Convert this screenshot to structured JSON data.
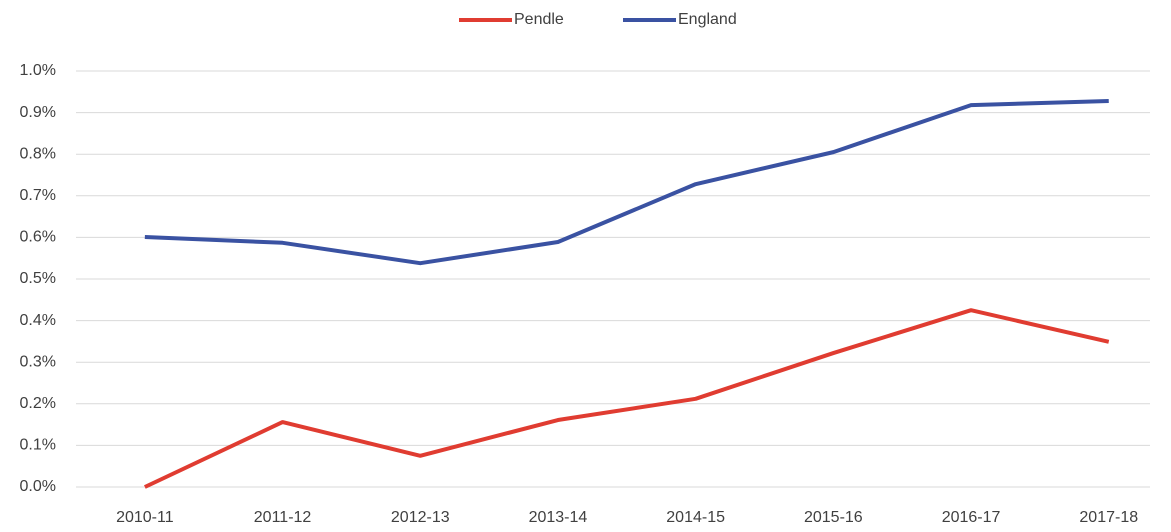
{
  "chart_data": {
    "type": "line",
    "categories": [
      "2010-11",
      "2011-12",
      "2012-13",
      "2013-14",
      "2014-15",
      "2015-16",
      "2016-17",
      "2017-18"
    ],
    "series": [
      {
        "name": "Pendle",
        "color": "#e03c31",
        "values": [
          0,
          0.156,
          0.075,
          0.161,
          0.212,
          0.322,
          0.425,
          0.349
        ]
      },
      {
        "name": "England",
        "color": "#3a52a2",
        "values": [
          0.601,
          0.587,
          0.538,
          0.589,
          0.728,
          0.805,
          0.918,
          0.928
        ]
      }
    ],
    "ylim": [
      0,
      1.0
    ],
    "yticks": [
      {
        "value": 0,
        "label": "0.0%"
      },
      {
        "value": 0.1,
        "label": "0.1%"
      },
      {
        "value": 0.2,
        "label": "0.2%"
      },
      {
        "value": 0.3,
        "label": "0.3%"
      },
      {
        "value": 0.4,
        "label": "0.4%"
      },
      {
        "value": 0.5,
        "label": "0.5%"
      },
      {
        "value": 0.6,
        "label": "0.6%"
      },
      {
        "value": 0.7,
        "label": "0.7%"
      },
      {
        "value": 0.8,
        "label": "0.8%"
      },
      {
        "value": 0.9,
        "label": "0.9%"
      },
      {
        "value": 1.0,
        "label": "1.0%"
      }
    ],
    "grid": true,
    "legend": "top"
  }
}
